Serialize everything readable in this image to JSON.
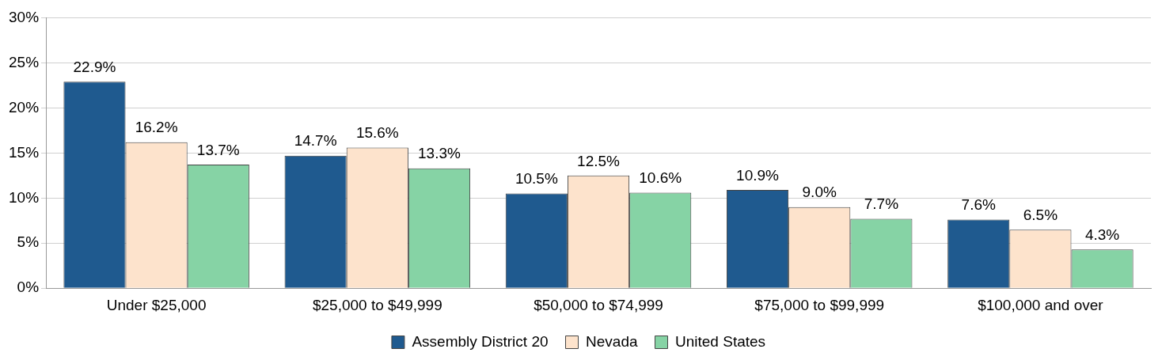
{
  "chart_data": {
    "type": "bar",
    "categories": [
      "Under $25,000",
      "$25,000 to $49,999",
      "$50,000 to $74,999",
      "$75,000 to $99,999",
      "$100,000 and over"
    ],
    "series": [
      {
        "name": "Assembly District 20",
        "color": "#1f5a8f",
        "values": [
          22.9,
          14.7,
          10.5,
          10.9,
          7.6
        ],
        "value_labels": [
          "22.9%",
          "14.7%",
          "10.5%",
          "10.9%",
          "7.6%"
        ]
      },
      {
        "name": "Nevada",
        "color": "#fde3cc",
        "values": [
          16.2,
          15.6,
          12.5,
          9.0,
          6.5
        ],
        "value_labels": [
          "16.2%",
          "15.6%",
          "12.5%",
          "9.0%",
          "6.5%"
        ]
      },
      {
        "name": "United States",
        "color": "#86d3a5",
        "values": [
          13.7,
          13.3,
          10.6,
          7.7,
          4.3
        ],
        "value_labels": [
          "13.7%",
          "13.3%",
          "10.6%",
          "7.7%",
          "4.3%"
        ]
      }
    ],
    "ylim": [
      0,
      30
    ],
    "yticks": [
      {
        "value": 0,
        "label": "0%"
      },
      {
        "value": 5,
        "label": "5%"
      },
      {
        "value": 10,
        "label": "10%"
      },
      {
        "value": 15,
        "label": "15%"
      },
      {
        "value": 20,
        "label": "20%"
      },
      {
        "value": 25,
        "label": "25%"
      },
      {
        "value": 30,
        "label": "30%"
      }
    ],
    "grid": "y",
    "legend": "bottom"
  }
}
